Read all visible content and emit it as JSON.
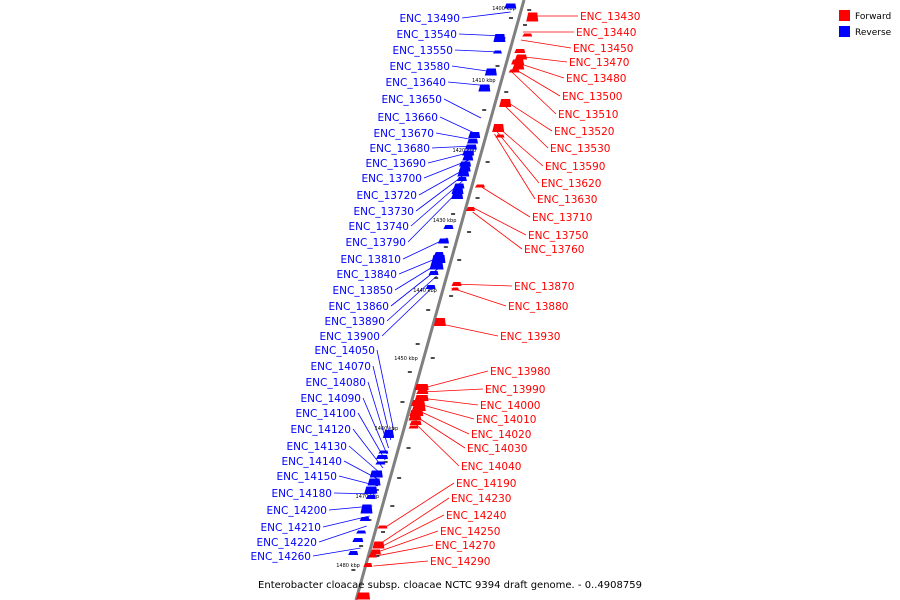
{
  "caption": "Enterobacter cloacae subsp. cloacae NCTC 9394 draft genome. - 0..4908759",
  "legend": {
    "items": [
      {
        "label": "Forward",
        "color": "#ff0000"
      },
      {
        "label": "Reverse",
        "color": "#0000ff"
      }
    ]
  },
  "colors": {
    "forward": "#ff0000",
    "reverse": "#0000ff",
    "axis": "#808080"
  },
  "ticks": [
    "1400 kbp",
    "1410 kbp",
    "1420 kbp",
    "1430 kbp",
    "1440 kbp",
    "1450 kbp",
    "1460 kbp",
    "1470 kbp",
    "1480 kbp"
  ],
  "reverse_genes": [
    "ENC_13490",
    "ENC_13540",
    "ENC_13550",
    "ENC_13580",
    "ENC_13640",
    "ENC_13650",
    "ENC_13660",
    "ENC_13670",
    "ENC_13680",
    "ENC_13690",
    "ENC_13700",
    "ENC_13720",
    "ENC_13730",
    "ENC_13740",
    "ENC_13790",
    "ENC_13810",
    "ENC_13840",
    "ENC_13850",
    "ENC_13860",
    "ENC_13890",
    "ENC_13900",
    "ENC_14050",
    "ENC_14070",
    "ENC_14080",
    "ENC_14090",
    "ENC_14100",
    "ENC_14120",
    "ENC_14130",
    "ENC_14140",
    "ENC_14150",
    "ENC_14180",
    "ENC_14200",
    "ENC_14210",
    "ENC_14220",
    "ENC_14260"
  ],
  "forward_genes": [
    "ENC_13430",
    "ENC_13440",
    "ENC_13450",
    "ENC_13470",
    "ENC_13480",
    "ENC_13500",
    "ENC_13510",
    "ENC_13520",
    "ENC_13530",
    "ENC_13590",
    "ENC_13620",
    "ENC_13630",
    "ENC_13710",
    "ENC_13750",
    "ENC_13760",
    "ENC_13870",
    "ENC_13880",
    "ENC_13930",
    "ENC_13980",
    "ENC_13990",
    "ENC_14000",
    "ENC_14010",
    "ENC_14020",
    "ENC_14030",
    "ENC_14040",
    "ENC_14190",
    "ENC_14230",
    "ENC_14240",
    "ENC_14250",
    "ENC_14270",
    "ENC_14290"
  ]
}
